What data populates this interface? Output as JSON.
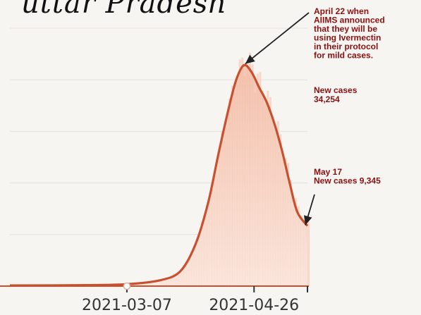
{
  "chart_data": {
    "type": "area",
    "title": "uttar Pradesh",
    "x_ticks": [
      "2021-03-07",
      "2021-04-26"
    ],
    "xlim": [
      "2021-01-20",
      "2021-05-17"
    ],
    "ylim": [
      0,
      40000
    ],
    "grid": true,
    "series": [
      {
        "x": [
          "2021-01-20",
          "2021-02-20",
          "2021-03-07",
          "2021-03-20",
          "2021-03-28",
          "2021-04-03",
          "2021-04-08",
          "2021-04-12",
          "2021-04-16",
          "2021-04-19",
          "2021-04-22",
          "2021-04-25",
          "2021-04-28",
          "2021-05-01",
          "2021-05-04",
          "2021-05-07",
          "2021-05-10",
          "2021-05-13",
          "2021-05-17"
        ],
        "y": [
          100,
          150,
          300,
          900,
          2300,
          6500,
          13000,
          20500,
          27500,
          32000,
          34254,
          33200,
          30800,
          28500,
          25200,
          21000,
          16000,
          11500,
          9345
        ]
      }
    ],
    "annotations": [
      {
        "date": "2021-04-22",
        "lines": [
          "April 22 when",
          "AIIMS announced",
          "that they will be",
          "using Ivermectin",
          "in their protocol",
          "for mild cases."
        ]
      },
      {
        "lines": [
          "New cases",
          "34,254"
        ]
      },
      {
        "date": "2021-05-17",
        "lines": [
          "May 17",
          "New cases 9,345"
        ]
      }
    ]
  },
  "colors": {
    "line": "#c8502e",
    "fill_top": "#f2b8a0",
    "fill_bottom": "#fbe7de",
    "bars": "#f6d4c4",
    "grid": "#e4e1dd",
    "annotation_text": "#8a1010",
    "arrow": "#222222",
    "background": "#f7f5f2"
  }
}
